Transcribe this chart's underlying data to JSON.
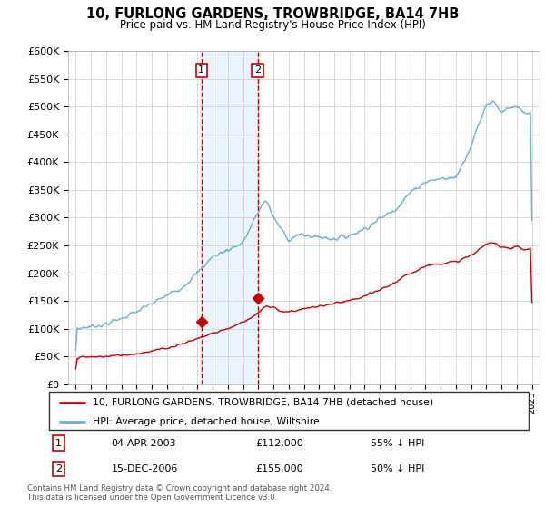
{
  "title": "10, FURLONG GARDENS, TROWBRIDGE, BA14 7HB",
  "subtitle": "Price paid vs. HM Land Registry's House Price Index (HPI)",
  "legend_line1": "10, FURLONG GARDENS, TROWBRIDGE, BA14 7HB (detached house)",
  "legend_line2": "HPI: Average price, detached house, Wiltshire",
  "footnote1": "Contains HM Land Registry data © Crown copyright and database right 2024.",
  "footnote2": "This data is licensed under the Open Government Licence v3.0.",
  "transaction1_date": "04-APR-2003",
  "transaction1_price": "£112,000",
  "transaction1_hpi": "55% ↓ HPI",
  "transaction2_date": "15-DEC-2006",
  "transaction2_price": "£155,000",
  "transaction2_hpi": "50% ↓ HPI",
  "hpi_color": "#6baed6",
  "price_color": "#cc0000",
  "shading_color": "#ddeeff",
  "ylim": [
    0,
    600000
  ],
  "yticks": [
    0,
    50000,
    100000,
    150000,
    200000,
    250000,
    300000,
    350000,
    400000,
    450000,
    500000,
    550000,
    600000
  ],
  "transaction1_year": 2003.27,
  "transaction2_year": 2006.96,
  "transaction1_value": 112000,
  "transaction2_value": 155000
}
